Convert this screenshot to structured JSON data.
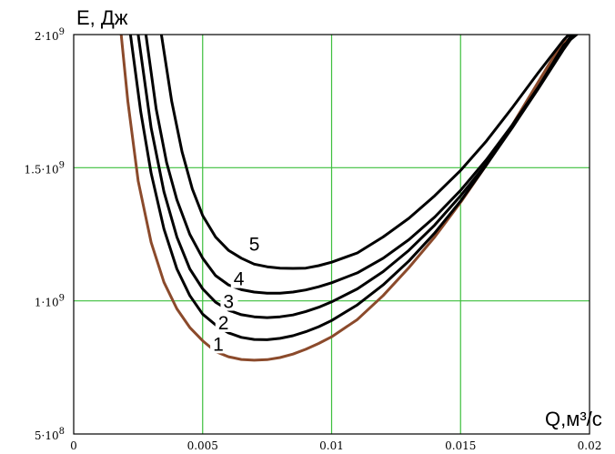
{
  "chart_data": {
    "type": "line",
    "title": "",
    "xlabel": "Q,м³/с",
    "ylabel": "E, Дж",
    "xlim": [
      0,
      0.02
    ],
    "ylim": [
      500000000,
      2000000000
    ],
    "grid": true,
    "x_ticks": [
      {
        "value": 0,
        "label": "0"
      },
      {
        "value": 0.005,
        "label": "0.005"
      },
      {
        "value": 0.01,
        "label": "0.01"
      },
      {
        "value": 0.015,
        "label": "0.015"
      },
      {
        "value": 0.02,
        "label": "0.02"
      }
    ],
    "y_ticks": [
      {
        "value": 500000000,
        "mantissa": "5",
        "exp": "8"
      },
      {
        "value": 1000000000,
        "mantissa": "1",
        "exp": "9"
      },
      {
        "value": 1500000000,
        "mantissa": "1.5",
        "exp": "9"
      },
      {
        "value": 2000000000,
        "mantissa": "2",
        "exp": "9"
      }
    ],
    "colors": {
      "series_1": "#8b4a2b",
      "other_series": "#000000",
      "grid": "#3dbf3d"
    },
    "series": [
      {
        "name": "1",
        "label_at": [
          0.0054,
          820000000
        ],
        "x": [
          0.00184,
          0.0021,
          0.0025,
          0.003,
          0.0035,
          0.004,
          0.0045,
          0.005,
          0.0055,
          0.006,
          0.0065,
          0.007,
          0.0075,
          0.008,
          0.0085,
          0.009,
          0.0095,
          0.01,
          0.011,
          0.012,
          0.013,
          0.014,
          0.015,
          0.016,
          0.017,
          0.018,
          0.0185,
          0.019,
          0.0195
        ],
        "y": [
          2000000000,
          1750000000,
          1450000000,
          1220000000,
          1070000000,
          970000000,
          900000000,
          850000000,
          810000000,
          790000000,
          780000000,
          777000000,
          779000000,
          787000000,
          800000000,
          818000000,
          840000000,
          865000000,
          930000000,
          1020000000,
          1125000000,
          1240000000,
          1370000000,
          1510000000,
          1660000000,
          1820000000,
          1900000000,
          1970000000,
          2000000000
        ]
      },
      {
        "name": "2",
        "label_at": [
          0.0056,
          900000000
        ],
        "x": [
          0.0022,
          0.0026,
          0.003,
          0.0035,
          0.004,
          0.0045,
          0.005,
          0.0055,
          0.006,
          0.0065,
          0.007,
          0.0075,
          0.008,
          0.0085,
          0.009,
          0.0095,
          0.01,
          0.011,
          0.012,
          0.013,
          0.014,
          0.015,
          0.016,
          0.017,
          0.018,
          0.019,
          0.0195
        ],
        "y": [
          2000000000,
          1710000000,
          1480000000,
          1270000000,
          1120000000,
          1020000000,
          950000000,
          910000000,
          880000000,
          863000000,
          855000000,
          854000000,
          859000000,
          869000000,
          884000000,
          903000000,
          926000000,
          985000000,
          1060000000,
          1150000000,
          1255000000,
          1375000000,
          1510000000,
          1650000000,
          1800000000,
          1960000000,
          2000000000
        ]
      },
      {
        "name": "3",
        "label_at": [
          0.0058,
          980000000
        ],
        "x": [
          0.0025,
          0.003,
          0.0035,
          0.004,
          0.0045,
          0.005,
          0.0055,
          0.006,
          0.0065,
          0.007,
          0.0075,
          0.008,
          0.0085,
          0.009,
          0.0095,
          0.01,
          0.011,
          0.012,
          0.013,
          0.014,
          0.015,
          0.016,
          0.017,
          0.018,
          0.019,
          0.0194
        ],
        "y": [
          2000000000,
          1650000000,
          1410000000,
          1240000000,
          1120000000,
          1045000000,
          995000000,
          965000000,
          948000000,
          940000000,
          937000000,
          940000000,
          947000000,
          960000000,
          976000000,
          996000000,
          1045000000,
          1110000000,
          1190000000,
          1285000000,
          1395000000,
          1515000000,
          1650000000,
          1795000000,
          1945000000,
          2000000000
        ]
      },
      {
        "name": "4",
        "label_at": [
          0.0062,
          1065000000
        ],
        "x": [
          0.0028,
          0.0032,
          0.0036,
          0.004,
          0.0045,
          0.005,
          0.0055,
          0.006,
          0.0065,
          0.007,
          0.0075,
          0.008,
          0.0085,
          0.009,
          0.0095,
          0.01,
          0.011,
          0.012,
          0.013,
          0.014,
          0.015,
          0.016,
          0.017,
          0.018,
          0.019,
          0.0193
        ],
        "y": [
          2000000000,
          1720000000,
          1520000000,
          1380000000,
          1250000000,
          1160000000,
          1095000000,
          1060000000,
          1042000000,
          1033000000,
          1029000000,
          1029000000,
          1033000000,
          1041000000,
          1053000000,
          1068000000,
          1105000000,
          1160000000,
          1230000000,
          1315000000,
          1415000000,
          1530000000,
          1660000000,
          1800000000,
          1950000000,
          2000000000
        ]
      },
      {
        "name": "5",
        "label_at": [
          0.0068,
          1195000000
        ],
        "x": [
          0.0034,
          0.0038,
          0.0042,
          0.0046,
          0.005,
          0.0055,
          0.006,
          0.0065,
          0.007,
          0.0075,
          0.008,
          0.0085,
          0.009,
          0.0095,
          0.01,
          0.011,
          0.012,
          0.013,
          0.014,
          0.015,
          0.016,
          0.017,
          0.018,
          0.019,
          0.0192
        ],
        "y": [
          2000000000,
          1750000000,
          1560000000,
          1420000000,
          1320000000,
          1240000000,
          1190000000,
          1160000000,
          1138000000,
          1128000000,
          1123000000,
          1122000000,
          1123000000,
          1132000000,
          1145000000,
          1180000000,
          1240000000,
          1310000000,
          1395000000,
          1490000000,
          1600000000,
          1725000000,
          1855000000,
          1980000000,
          2000000000
        ]
      }
    ]
  }
}
